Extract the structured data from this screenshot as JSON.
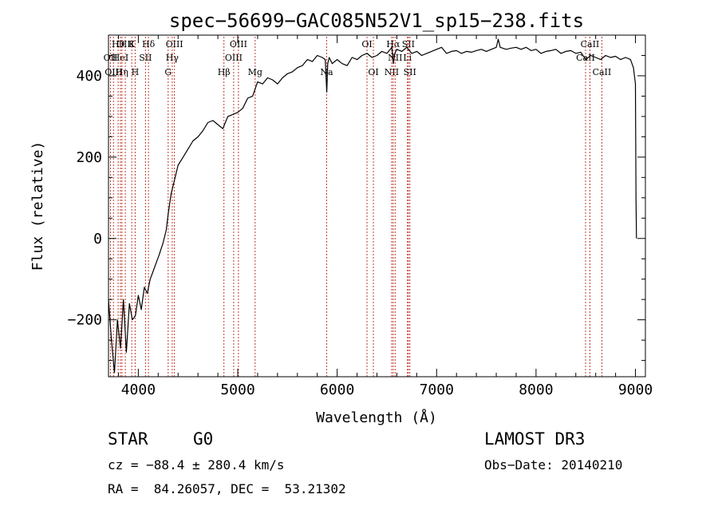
{
  "chart_data": {
    "type": "line",
    "title": "spec−56699−GAC085N52V1_sp15−238.fits",
    "xlabel": "Wavelength (Å)",
    "ylabel": "Flux (relative)",
    "xlim": [
      3700,
      9100
    ],
    "ylim": [
      -340,
      500
    ],
    "x_ticks": [
      4000,
      5000,
      6000,
      7000,
      8000,
      9000
    ],
    "x_tick_labels": [
      "4000",
      "5000",
      "6000",
      "7000",
      "8000",
      "9000"
    ],
    "y_ticks": [
      -200,
      0,
      200,
      400
    ],
    "y_tick_labels": [
      "−200",
      "0",
      "200",
      "400"
    ],
    "grid": false,
    "series": [
      {
        "name": "flux",
        "x": [
          3700,
          3730,
          3760,
          3790,
          3820,
          3850,
          3880,
          3910,
          3940,
          3970,
          4000,
          4030,
          4060,
          4090,
          4120,
          4150,
          4180,
          4210,
          4250,
          4280,
          4300,
          4330,
          4360,
          4400,
          4450,
          4500,
          4550,
          4600,
          4650,
          4700,
          4750,
          4800,
          4850,
          4900,
          4950,
          5000,
          5050,
          5100,
          5150,
          5200,
          5250,
          5300,
          5350,
          5400,
          5450,
          5500,
          5550,
          5600,
          5650,
          5700,
          5750,
          5800,
          5850,
          5880,
          5895,
          5905,
          5920,
          5950,
          6000,
          6050,
          6100,
          6150,
          6200,
          6250,
          6300,
          6350,
          6400,
          6450,
          6500,
          6550,
          6565,
          6580,
          6600,
          6650,
          6700,
          6750,
          6800,
          6850,
          6900,
          6950,
          7000,
          7050,
          7100,
          7150,
          7200,
          7250,
          7300,
          7350,
          7400,
          7450,
          7500,
          7550,
          7600,
          7620,
          7640,
          7700,
          7750,
          7800,
          7850,
          7900,
          7950,
          8000,
          8050,
          8100,
          8150,
          8200,
          8250,
          8300,
          8350,
          8400,
          8450,
          8500,
          8550,
          8600,
          8650,
          8700,
          8750,
          8800,
          8850,
          8900,
          8950,
          8980,
          9000,
          9005,
          9010
        ],
        "values": [
          -150,
          -250,
          -330,
          -200,
          -270,
          -150,
          -280,
          -160,
          -200,
          -190,
          -140,
          -175,
          -120,
          -135,
          -100,
          -80,
          -60,
          -40,
          -10,
          20,
          60,
          110,
          140,
          180,
          200,
          220,
          240,
          250,
          265,
          285,
          290,
          280,
          270,
          300,
          305,
          310,
          320,
          345,
          350,
          385,
          380,
          395,
          390,
          380,
          395,
          405,
          410,
          420,
          425,
          440,
          435,
          450,
          445,
          440,
          360,
          430,
          445,
          430,
          440,
          430,
          425,
          445,
          440,
          450,
          455,
          445,
          450,
          460,
          455,
          470,
          430,
          455,
          465,
          460,
          470,
          455,
          460,
          450,
          455,
          460,
          465,
          470,
          455,
          460,
          462,
          455,
          460,
          458,
          462,
          465,
          460,
          465,
          470,
          490,
          470,
          465,
          468,
          470,
          465,
          470,
          462,
          465,
          455,
          460,
          462,
          465,
          455,
          460,
          462,
          455,
          458,
          440,
          450,
          445,
          440,
          450,
          445,
          448,
          440,
          445,
          440,
          420,
          380,
          100,
          0
        ]
      }
    ],
    "line_markers": [
      {
        "wavelength": 3720,
        "label": "OII",
        "row": 2
      },
      {
        "wavelength": 3750,
        "label": "OIII",
        "row": 3
      },
      {
        "wavelength": 3797,
        "label": "Hθ",
        "row": 1
      },
      {
        "wavelength": 3820,
        "label": "HeI",
        "row": 2
      },
      {
        "wavelength": 3835,
        "label": "Hη",
        "row": 3
      },
      {
        "wavelength": 3869,
        "label": "OIII",
        "row": 1
      },
      {
        "wavelength": 3934,
        "label": "K",
        "row": 1
      },
      {
        "wavelength": 3968,
        "label": "H",
        "row": 3
      },
      {
        "wavelength": 4072,
        "label": "SII",
        "row": 2
      },
      {
        "wavelength": 4102,
        "label": "Hδ",
        "row": 1
      },
      {
        "wavelength": 4300,
        "label": "G",
        "row": 3
      },
      {
        "wavelength": 4341,
        "label": "Hγ",
        "row": 2
      },
      {
        "wavelength": 4363,
        "label": "OIII",
        "row": 1
      },
      {
        "wavelength": 4861,
        "label": "Hβ",
        "row": 3
      },
      {
        "wavelength": 4959,
        "label": "OIII",
        "row": 2
      },
      {
        "wavelength": 5007,
        "label": "OIII",
        "row": 1
      },
      {
        "wavelength": 5175,
        "label": "Mg",
        "row": 3
      },
      {
        "wavelength": 5894,
        "label": "Na",
        "row": 3
      },
      {
        "wavelength": 6300,
        "label": "OI",
        "row": 1
      },
      {
        "wavelength": 6364,
        "label": "OI",
        "row": 3
      },
      {
        "wavelength": 6548,
        "label": "NII",
        "row": 3
      },
      {
        "wavelength": 6563,
        "label": "Hα",
        "row": 1
      },
      {
        "wavelength": 6583,
        "label": "NII",
        "row": 2
      },
      {
        "wavelength": 6707,
        "label": "Li",
        "row": 2
      },
      {
        "wavelength": 6716,
        "label": "SII",
        "row": 1
      },
      {
        "wavelength": 6731,
        "label": "SII",
        "row": 3
      },
      {
        "wavelength": 8498,
        "label": "CaII",
        "row": 2
      },
      {
        "wavelength": 8542,
        "label": "CaII",
        "row": 1
      },
      {
        "wavelength": 8662,
        "label": "CaII",
        "row": 3
      }
    ]
  },
  "info": {
    "class": "STAR",
    "subclass": "G0",
    "survey": "LAMOST DR3",
    "cz": "cz = −88.4 ± 280.4 km/s",
    "obs_date": "Obs−Date: 20140210",
    "radec": "RA =  84.26057, DEC =  53.21302"
  },
  "colors": {
    "spectrum": "#000000",
    "line_marker": "#c0392b",
    "axes": "#000000"
  }
}
